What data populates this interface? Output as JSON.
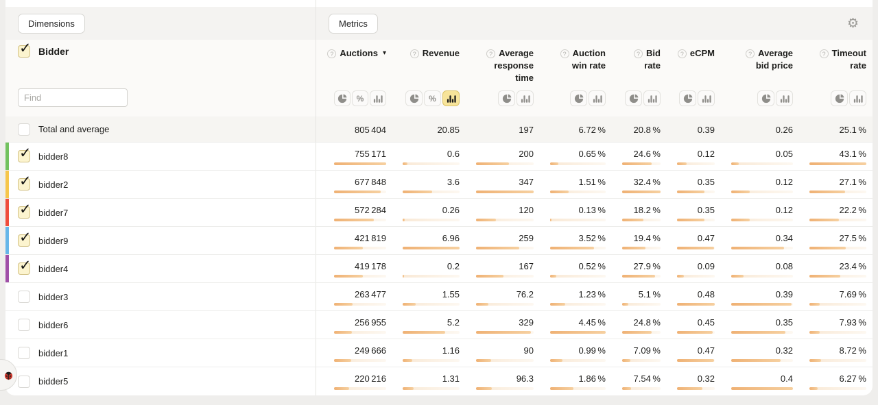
{
  "theme": {
    "bar_fill": "#efb174",
    "active_toggle_bg": "#f7e49a",
    "accent_checkbox_bg": "#fcf4cf"
  },
  "toolbar": {
    "dimensions_label": "Dimensions",
    "metrics_label": "Metrics",
    "gear_icon": "⚙"
  },
  "dimension_header": {
    "name": "Bidder",
    "checked": true,
    "find_placeholder": "Find"
  },
  "icons": {
    "help": "?",
    "sort_desc": "▾",
    "percent": "%"
  },
  "columns": [
    {
      "label": "Auctions",
      "lines": [
        "Auctions"
      ],
      "sorted": "desc",
      "toggles": [
        "pie",
        "percent",
        "bars"
      ],
      "active": ""
    },
    {
      "label": "Revenue",
      "lines": [
        "Revenue"
      ],
      "sorted": "",
      "toggles": [
        "pie",
        "percent",
        "bars"
      ],
      "active": "bars"
    },
    {
      "label": "Average response time",
      "lines": [
        "Average",
        "response",
        "time"
      ],
      "sorted": "",
      "toggles": [
        "pie",
        "bars"
      ],
      "active": ""
    },
    {
      "label": "Auction win rate",
      "lines": [
        "Auction",
        "win rate"
      ],
      "sorted": "",
      "toggles": [
        "pie",
        "bars"
      ],
      "active": ""
    },
    {
      "label": "Bid rate",
      "lines": [
        "Bid",
        "rate"
      ],
      "sorted": "",
      "toggles": [
        "pie",
        "bars"
      ],
      "active": ""
    },
    {
      "label": "eCPM",
      "lines": [
        "eCPM"
      ],
      "sorted": "",
      "toggles": [
        "pie",
        "bars"
      ],
      "active": ""
    },
    {
      "label": "Average bid price",
      "lines": [
        "Average",
        "bid price"
      ],
      "sorted": "",
      "toggles": [
        "pie",
        "bars"
      ],
      "active": ""
    },
    {
      "label": "Timeout rate",
      "lines": [
        "Timeout",
        "rate"
      ],
      "sorted": "",
      "toggles": [
        "pie",
        "bars"
      ],
      "active": ""
    }
  ],
  "total_row": {
    "label": "Total and average",
    "checked": false,
    "values": [
      "805 404",
      "20.85",
      "197",
      "6.72 %",
      "20.8 %",
      "0.39",
      "0.26",
      "25.1 %"
    ]
  },
  "rows": [
    {
      "label": "bidder8",
      "checked": true,
      "stripe": "#72c25f",
      "cells": [
        [
          "755 171",
          100
        ],
        [
          "0.6",
          8.6
        ],
        [
          "200",
          57.6
        ],
        [
          "0.65 %",
          14.6
        ],
        [
          "24.6 %",
          75.9
        ],
        [
          "0.12",
          25.0
        ],
        [
          "0.05",
          12.5
        ],
        [
          "43.1 %",
          100
        ]
      ]
    },
    {
      "label": "bidder2",
      "checked": true,
      "stripe": "#f6c64b",
      "cells": [
        [
          "677 848",
          89.8
        ],
        [
          "3.6",
          51.7
        ],
        [
          "347",
          100
        ],
        [
          "1.51 %",
          33.9
        ],
        [
          "32.4 %",
          100
        ],
        [
          "0.35",
          72.9
        ],
        [
          "0.12",
          30.0
        ],
        [
          "27.1 %",
          62.9
        ]
      ]
    },
    {
      "label": "bidder7",
      "checked": true,
      "stripe": "#ef4d3c",
      "cells": [
        [
          "572 284",
          75.8
        ],
        [
          "0.26",
          3.7
        ],
        [
          "120",
          34.6
        ],
        [
          "0.13 %",
          2.9
        ],
        [
          "18.2 %",
          56.2
        ],
        [
          "0.35",
          72.9
        ],
        [
          "0.12",
          30.0
        ],
        [
          "22.2 %",
          51.5
        ]
      ]
    },
    {
      "label": "bidder9",
      "checked": true,
      "stripe": "#66b6e9",
      "cells": [
        [
          "421 819",
          55.9
        ],
        [
          "6.96",
          100
        ],
        [
          "259",
          74.6
        ],
        [
          "3.52 %",
          79.1
        ],
        [
          "19.4 %",
          59.9
        ],
        [
          "0.47",
          97.9
        ],
        [
          "0.34",
          85.0
        ],
        [
          "27.5 %",
          63.8
        ]
      ]
    },
    {
      "label": "bidder4",
      "checked": true,
      "stripe": "#a04fa8",
      "cells": [
        [
          "419 178",
          55.5
        ],
        [
          "0.2",
          2.9
        ],
        [
          "167",
          48.1
        ],
        [
          "0.52 %",
          11.7
        ],
        [
          "27.9 %",
          86.1
        ],
        [
          "0.09",
          18.8
        ],
        [
          "0.08",
          20.0
        ],
        [
          "23.4 %",
          54.3
        ]
      ]
    },
    {
      "label": "bidder3",
      "checked": false,
      "stripe": "",
      "cells": [
        [
          "263 477",
          34.9
        ],
        [
          "1.55",
          22.3
        ],
        [
          "76.2",
          22.0
        ],
        [
          "1.23 %",
          27.6
        ],
        [
          "5.1 %",
          15.7
        ],
        [
          "0.48",
          100
        ],
        [
          "0.39",
          97.5
        ],
        [
          "7.69 %",
          17.8
        ]
      ]
    },
    {
      "label": "bidder6",
      "checked": false,
      "stripe": "",
      "cells": [
        [
          "256 955",
          34.0
        ],
        [
          "5.2",
          74.7
        ],
        [
          "329",
          94.8
        ],
        [
          "4.45 %",
          100
        ],
        [
          "24.8 %",
          76.5
        ],
        [
          "0.45",
          93.8
        ],
        [
          "0.35",
          87.5
        ],
        [
          "7.93 %",
          18.4
        ]
      ]
    },
    {
      "label": "bidder1",
      "checked": false,
      "stripe": "",
      "cells": [
        [
          "249 666",
          33.1
        ],
        [
          "1.16",
          16.7
        ],
        [
          "90",
          25.9
        ],
        [
          "0.99 %",
          22.2
        ],
        [
          "7.09 %",
          21.9
        ],
        [
          "0.47",
          97.9
        ],
        [
          "0.32",
          80.0
        ],
        [
          "8.72 %",
          20.2
        ]
      ]
    },
    {
      "label": "bidder5",
      "checked": false,
      "stripe": "",
      "cells": [
        [
          "220 216",
          29.2
        ],
        [
          "1.31",
          18.8
        ],
        [
          "96.3",
          27.8
        ],
        [
          "1.86 %",
          41.8
        ],
        [
          "7.54 %",
          23.3
        ],
        [
          "0.32",
          66.7
        ],
        [
          "0.4",
          100
        ],
        [
          "6.27 %",
          14.5
        ]
      ]
    }
  ]
}
